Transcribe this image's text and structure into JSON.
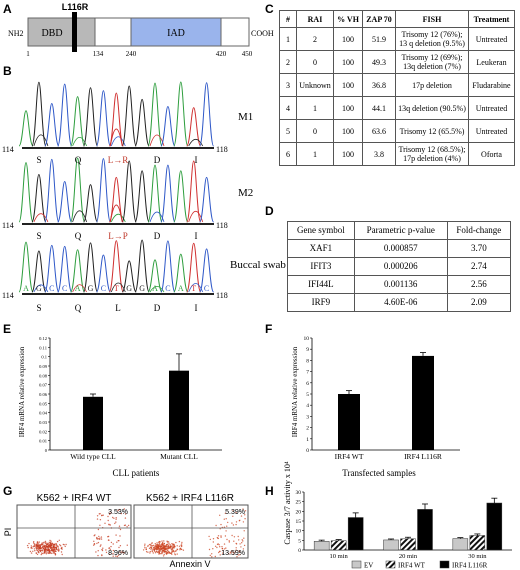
{
  "panels": {
    "A": "A",
    "B": "B",
    "C": "C",
    "D": "D",
    "E": "E",
    "F": "F",
    "G": "G",
    "H": "H"
  },
  "panel_a": {
    "mutation_label": "L116R",
    "nh2": "NH2",
    "cooh": "COOH",
    "dbd": "DBD",
    "iad": "IAD",
    "positions": [
      "1",
      "134",
      "240",
      "420",
      "450"
    ]
  },
  "panel_b": {
    "rows": [
      {
        "label": "M1",
        "start": "114",
        "end": "118",
        "residues": [
          "S",
          "Q",
          "L→R",
          "D",
          "I"
        ],
        "bases": []
      },
      {
        "label": "M2",
        "start": "114",
        "end": "118",
        "residues": [
          "S",
          "Q",
          "L→P",
          "D",
          "I"
        ],
        "bases": []
      },
      {
        "label": "Buccal swab",
        "start": "114",
        "end": "118",
        "residues": [
          "S",
          "Q",
          "L",
          "D",
          "I"
        ],
        "bases": [
          "A",
          "G",
          "C",
          "C",
          "A",
          "G",
          "C",
          "T",
          "G",
          "G",
          "A",
          "C",
          "A",
          "T",
          "C"
        ]
      }
    ]
  },
  "panel_c": {
    "headers": [
      "#",
      "RAI",
      "% VH",
      "ZAP 70",
      "FISH",
      "Treatment"
    ],
    "rows": [
      [
        "1",
        "2",
        "100",
        "51.9",
        "Trisomy 12 (76%); 13 q deletion (9.5%)",
        "Untreated"
      ],
      [
        "2",
        "0",
        "100",
        "49.3",
        "Trisomy 12 (69%); 13q deletion (7%)",
        "Leukeran"
      ],
      [
        "3",
        "Unknown",
        "100",
        "36.8",
        "17p deletion",
        "Fludarabine"
      ],
      [
        "4",
        "1",
        "100",
        "44.1",
        "13q deletion (90.5%)",
        "Untreated"
      ],
      [
        "5",
        "0",
        "100",
        "63.6",
        "Trisomy 12 (65.5%)",
        "Untreated"
      ],
      [
        "6",
        "1",
        "100",
        "3.8",
        "Trisomy 12 (68.5%); 17p deletion (4%)",
        "Oforta"
      ]
    ]
  },
  "panel_d": {
    "headers": [
      "Gene symbol",
      "Parametric p-value",
      "Fold-change"
    ],
    "rows": [
      [
        "XAF1",
        "0.000857",
        "3.70"
      ],
      [
        "IFIT3",
        "0.000206",
        "2.74"
      ],
      [
        "IFI44L",
        "0.001136",
        "2.56"
      ],
      [
        "IRF9",
        "4.60E-06",
        "2.09"
      ]
    ]
  },
  "chart_data": [
    {
      "panel": "E",
      "type": "bar",
      "categories": [
        "Wild type CLL",
        "Mutant CLL"
      ],
      "values": [
        0.057,
        0.085
      ],
      "errors": [
        0.003,
        0.018
      ],
      "ylabel": "IRF4 mRNA relative expression",
      "xlabel": "CLL patients",
      "ylim": [
        0,
        0.12
      ],
      "yticks": [
        "0",
        "0.01",
        "0.02",
        "0.03",
        "0.04",
        "0.05",
        "0.06",
        "0.07",
        "0.08",
        "0.09",
        "0.1",
        "0.11",
        "0.12"
      ]
    },
    {
      "panel": "F",
      "type": "bar",
      "categories": [
        "IRF4 WT",
        "IRF4 L116R"
      ],
      "values": [
        5.0,
        8.4
      ],
      "errors": [
        0.3,
        0.3
      ],
      "ylabel": "IRF4 mRNA relative expression",
      "xlabel": "Transfected samples",
      "ylim": [
        0,
        10
      ],
      "yticks": [
        "0",
        "1",
        "2",
        "3",
        "4",
        "5",
        "6",
        "7",
        "8",
        "9",
        "10"
      ]
    },
    {
      "panel": "H",
      "type": "bar",
      "categories": [
        "10 min",
        "20 min",
        "30 min"
      ],
      "series": [
        {
          "name": "EV",
          "values": [
            4.5,
            5.2,
            5.9
          ],
          "errors": [
            0.6,
            0.5,
            0.5
          ]
        },
        {
          "name": "IRF4 WT",
          "values": [
            4.8,
            5.8,
            7.5
          ],
          "errors": [
            0.6,
            0.8,
            0.8
          ]
        },
        {
          "name": "IRF4 L116R",
          "values": [
            16.8,
            21.0,
            24.3
          ],
          "errors": [
            2.4,
            2.8,
            2.5
          ]
        }
      ],
      "ylabel": "Caspase 3/7 activity x 10⁴",
      "ylim": [
        0,
        30
      ],
      "yticks": [
        "0",
        "5",
        "10",
        "15",
        "20",
        "25",
        "30"
      ],
      "legend": "bottom"
    }
  ],
  "panel_g": {
    "plots": [
      {
        "title": "K562 + IRF4 WT",
        "upper_right": "3.53%",
        "lower_right": "8.96%"
      },
      {
        "title": "K562 + IRF4 L116R",
        "upper_right": "5.39%",
        "lower_right": "13.59%"
      }
    ],
    "ylabel": "PI",
    "xlabel": "Annexin V"
  }
}
